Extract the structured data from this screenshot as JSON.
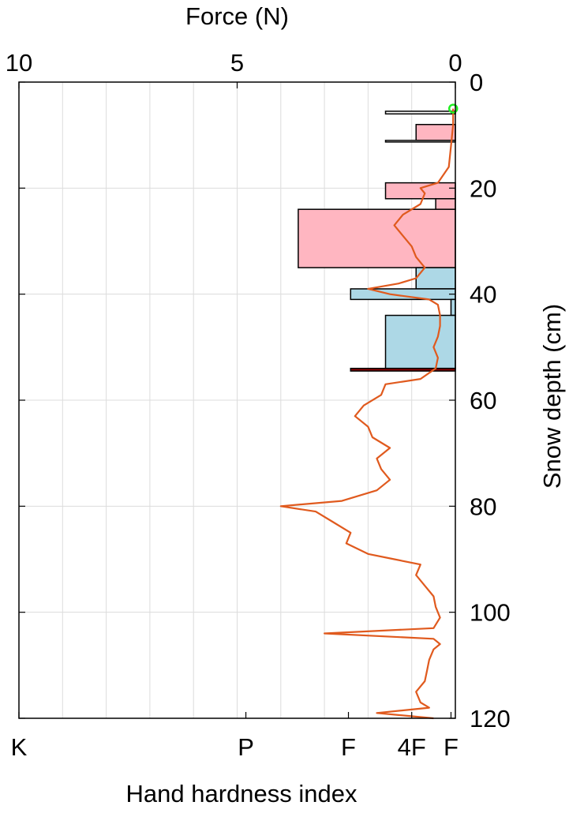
{
  "chart_data": {
    "type": "line",
    "title": "",
    "top_axis": {
      "label": "Force (N)",
      "range": [
        10,
        0
      ],
      "ticks": [
        10,
        5,
        0
      ]
    },
    "right_axis": {
      "label": "Snow depth (cm)",
      "range": [
        0,
        120
      ],
      "inverted": true,
      "ticks": [
        0,
        20,
        40,
        60,
        80,
        100,
        120
      ]
    },
    "bottom_axis": {
      "label": "Hand hardness index",
      "ticks": [
        {
          "label": "K",
          "force": 10
        },
        {
          "label": "P",
          "force": 4.8
        },
        {
          "label": "F",
          "force": 2.45
        },
        {
          "label": "4F",
          "force": 1.0
        },
        {
          "label": "F",
          "force": 0.1
        }
      ]
    },
    "grid": true,
    "grid_force_lines": [
      9,
      8,
      7,
      6,
      5,
      4,
      3,
      2,
      1
    ],
    "grid_depth_lines": [
      20,
      40,
      60,
      80,
      100
    ],
    "layers": [
      {
        "depth_top": 5.5,
        "depth_bottom": 6.0,
        "hardness_force": 1.6,
        "color": "#ffffff"
      },
      {
        "depth_top": 8.0,
        "depth_bottom": 11.0,
        "hardness_force": 0.9,
        "color": "#ffb6c1"
      },
      {
        "depth_top": 11.0,
        "depth_bottom": 11.3,
        "hardness_force": 1.6,
        "color": "#ffffff"
      },
      {
        "depth_top": 19.0,
        "depth_bottom": 22.0,
        "hardness_force": 1.6,
        "color": "#ffb6c1"
      },
      {
        "depth_top": 22.0,
        "depth_bottom": 24.0,
        "hardness_force": 0.45,
        "color": "#ffb6c1"
      },
      {
        "depth_top": 24.0,
        "depth_bottom": 35.0,
        "hardness_force": 3.6,
        "color": "#ffb6c1"
      },
      {
        "depth_top": 35.0,
        "depth_bottom": 39.0,
        "hardness_force": 0.9,
        "color": "#add8e6"
      },
      {
        "depth_top": 39.0,
        "depth_bottom": 41.0,
        "hardness_force": 2.4,
        "color": "#add8e6"
      },
      {
        "depth_top": 41.0,
        "depth_bottom": 44.0,
        "hardness_force": 0.1,
        "color": "#add8e6"
      },
      {
        "depth_top": 44.0,
        "depth_bottom": 54.0,
        "hardness_force": 1.6,
        "color": "#add8e6"
      },
      {
        "depth_top": 54.0,
        "depth_bottom": 54.5,
        "hardness_force": 2.4,
        "color": "#8b0000"
      }
    ],
    "surface_marker": {
      "depth": 5.0,
      "force": 0.05,
      "color": "#22ee22"
    },
    "series": [
      {
        "color": "#e05a1e",
        "depth": [
          5,
          8,
          12,
          16,
          19,
          20,
          21,
          23,
          25,
          27,
          29,
          31,
          33,
          35,
          37,
          38,
          39,
          40,
          41,
          42,
          44,
          46,
          48,
          50,
          52,
          54,
          56,
          57,
          59,
          61,
          63,
          65,
          67,
          69,
          71,
          73,
          75,
          77,
          79,
          80,
          81,
          83,
          85,
          87,
          89,
          90,
          91,
          93,
          95,
          97,
          99,
          101,
          103,
          104,
          105,
          106,
          107,
          109,
          111,
          113,
          115,
          117,
          118,
          119,
          120
        ],
        "force": [
          0.05,
          0.05,
          0.1,
          0.15,
          0.4,
          0.8,
          0.7,
          0.8,
          1.2,
          1.4,
          1.2,
          1.0,
          0.9,
          0.7,
          0.9,
          1.3,
          2.0,
          1.5,
          0.6,
          0.4,
          0.35,
          0.35,
          0.4,
          0.5,
          0.4,
          0.45,
          0.8,
          1.6,
          1.7,
          2.1,
          2.3,
          2.0,
          1.9,
          1.5,
          1.8,
          1.7,
          1.5,
          1.8,
          2.6,
          4.0,
          3.2,
          2.8,
          2.4,
          2.5,
          2.0,
          1.4,
          0.8,
          0.9,
          0.7,
          0.5,
          0.45,
          0.35,
          0.5,
          3.0,
          0.5,
          0.35,
          0.5,
          0.6,
          0.65,
          0.7,
          0.9,
          0.8,
          0.6,
          1.8,
          0.5
        ]
      }
    ]
  }
}
